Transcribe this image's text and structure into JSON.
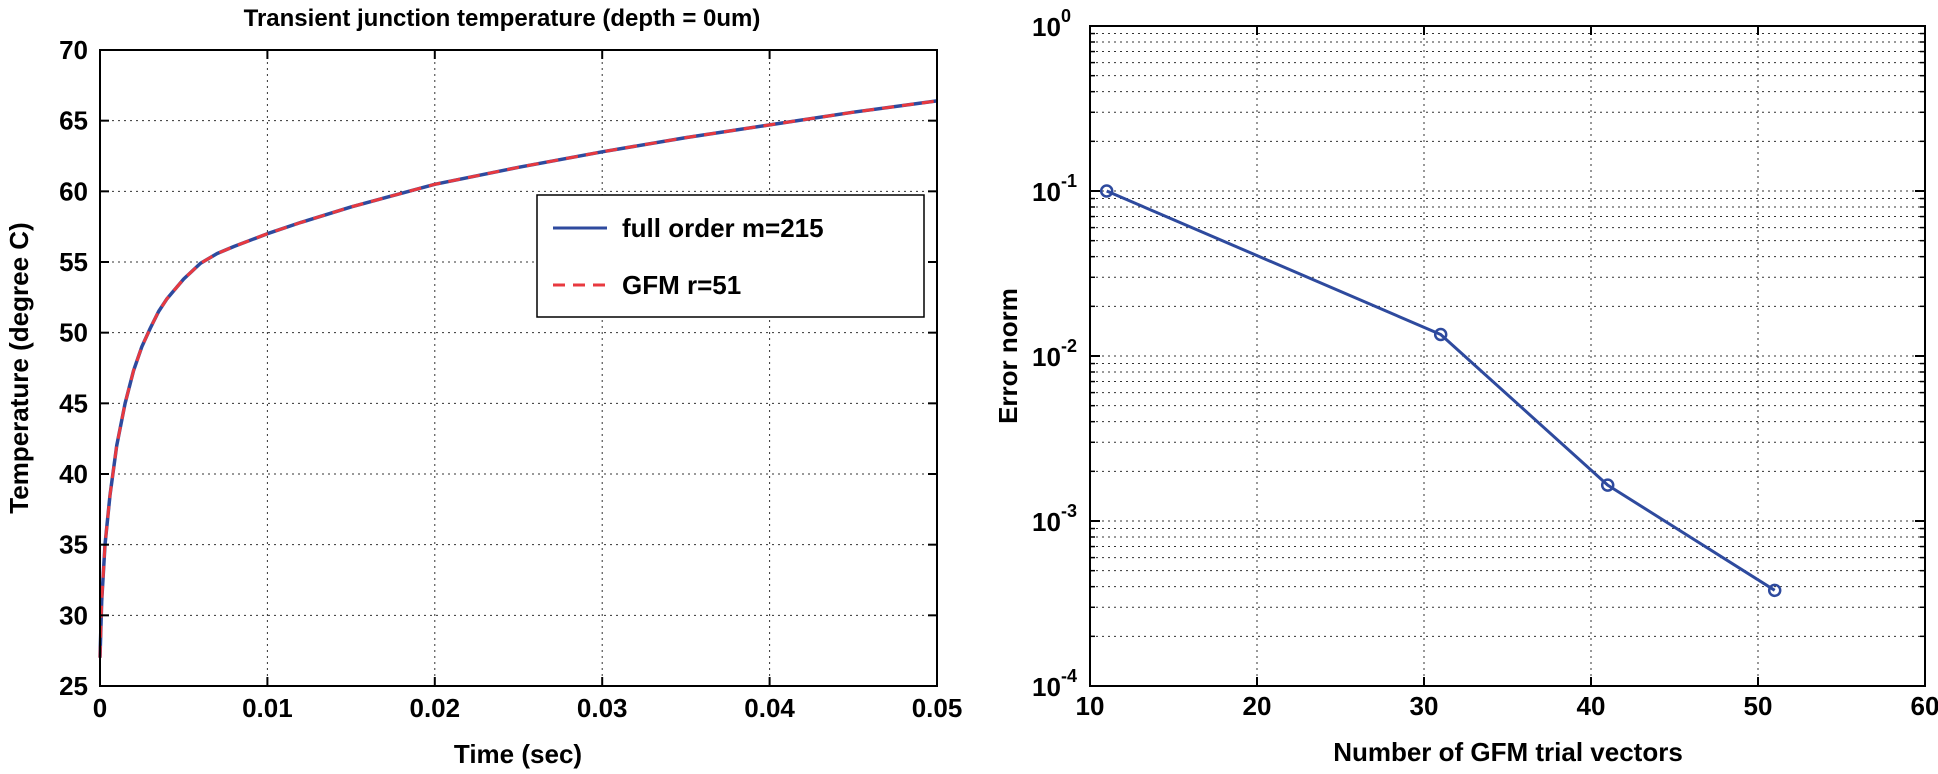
{
  "chart_data": [
    {
      "type": "line",
      "title": "Transient junction temperature (depth = 0um)",
      "xlabel": "Time (sec)",
      "ylabel": "Temperature (degree C)",
      "xlim": [
        0,
        0.05
      ],
      "ylim": [
        25,
        70
      ],
      "xticks": [
        0,
        0.01,
        0.02,
        0.03,
        0.04,
        0.05
      ],
      "xtick_labels": [
        "0",
        "0.01",
        "0.02",
        "0.03",
        "0.04",
        "0.05"
      ],
      "yticks": [
        25,
        30,
        35,
        40,
        45,
        50,
        55,
        60,
        65,
        70
      ],
      "ytick_labels": [
        "25",
        "30",
        "35",
        "40",
        "45",
        "50",
        "55",
        "60",
        "65",
        "70"
      ],
      "grid": true,
      "legend_position": "center-right",
      "x": [
        0,
        0.0001,
        0.0003,
        0.0006,
        0.001,
        0.0015,
        0.002,
        0.0025,
        0.003,
        0.0035,
        0.004,
        0.005,
        0.006,
        0.007,
        0.008,
        0.01,
        0.012,
        0.015,
        0.02,
        0.025,
        0.03,
        0.035,
        0.04,
        0.045,
        0.05
      ],
      "series": [
        {
          "name": "full order m=215",
          "color": "#2e4a9e",
          "style": "solid",
          "values": [
            27,
            31,
            35,
            38.5,
            42,
            45,
            47.3,
            49,
            50.3,
            51.5,
            52.4,
            53.8,
            54.9,
            55.6,
            56.1,
            57,
            57.8,
            58.9,
            60.5,
            61.7,
            62.8,
            63.8,
            64.7,
            65.6,
            66.4
          ]
        },
        {
          "name": "GFM r=51",
          "color": "#e8393f",
          "style": "dashed",
          "values": [
            27,
            31,
            35,
            38.5,
            42,
            45,
            47.3,
            49,
            50.3,
            51.5,
            52.4,
            53.8,
            54.9,
            55.6,
            56.1,
            57,
            57.8,
            58.9,
            60.5,
            61.7,
            62.8,
            63.8,
            64.7,
            65.6,
            66.4
          ]
        }
      ]
    },
    {
      "type": "line",
      "title": "",
      "xlabel": "Number of GFM trial vectors",
      "ylabel": "Error norm",
      "xlim": [
        10,
        60
      ],
      "ylim": [
        0.0001,
        1
      ],
      "yscale": "log",
      "xticks": [
        10,
        20,
        30,
        40,
        50,
        60
      ],
      "xtick_labels": [
        "10",
        "20",
        "30",
        "40",
        "50",
        "60"
      ],
      "ytick_bases": [
        "10",
        "10",
        "10",
        "10",
        "10"
      ],
      "ytick_exponents": [
        "-4",
        "-3",
        "-2",
        "-1",
        "0"
      ],
      "yticks": [
        0.0001,
        0.001,
        0.01,
        0.1,
        1
      ],
      "grid": true,
      "minor_grid": true,
      "x": [
        11,
        31,
        41,
        51
      ],
      "series": [
        {
          "color": "#2e4a9e",
          "style": "solid",
          "marker": "circle",
          "values": [
            0.1,
            0.0135,
            0.00165,
            0.00038
          ]
        }
      ]
    }
  ]
}
